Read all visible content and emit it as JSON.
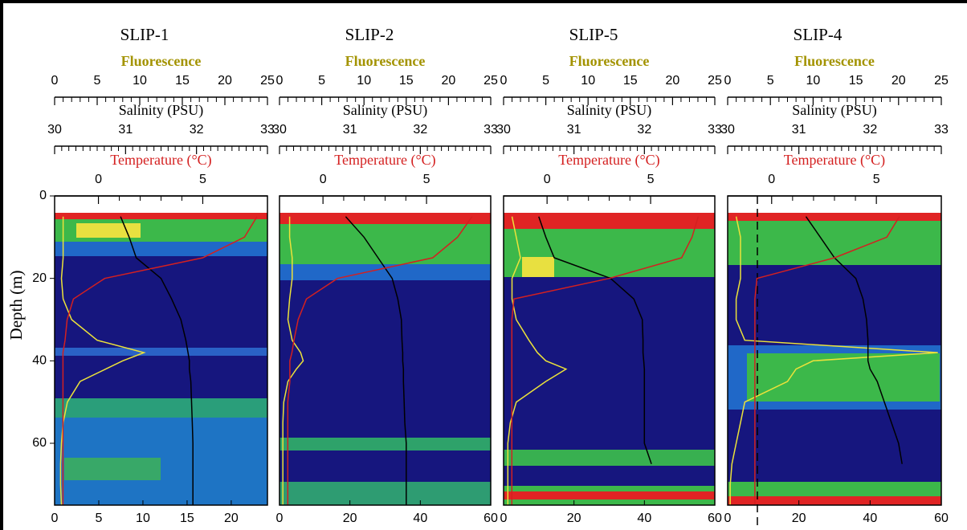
{
  "chart_data": [
    {
      "type": "line",
      "title": "SLIP-1",
      "ylabel": "Depth (m)",
      "ylim": [
        0,
        75
      ],
      "yticks": [
        0,
        20,
        40,
        60
      ],
      "xlim": [
        0,
        24.1
      ],
      "xticks": [
        0,
        5,
        10,
        15,
        20
      ],
      "depth": [
        5,
        10,
        15,
        20,
        25,
        30,
        35,
        38,
        40,
        42,
        45,
        50,
        55,
        60,
        65,
        70,
        75
      ],
      "axes": [
        {
          "label": "Fluorescence",
          "label_color": "#a39300",
          "line_color": "#ece23a",
          "xlim": [
            0,
            25
          ],
          "xticks": [
            0,
            5,
            10,
            15,
            20,
            25
          ],
          "values": [
            1,
            1,
            1,
            0.8,
            1,
            2,
            5,
            10.5,
            8,
            6,
            3,
            1.5,
            1,
            0.8,
            0.7,
            0.7,
            0.8
          ]
        },
        {
          "label": "Salinity (PSU)",
          "label_color": "#000000",
          "line_color": "#000000",
          "xlim": [
            30,
            33
          ],
          "xticks": [
            30,
            31,
            32,
            33
          ],
          "values": [
            30.93,
            31.05,
            31.15,
            31.5,
            31.65,
            31.78,
            31.85,
            31.88,
            31.9,
            31.9,
            31.92,
            31.93,
            31.94,
            31.95,
            31.95,
            31.95,
            31.95
          ]
        },
        {
          "label": "Temperature (°C)",
          "label_color": "#d42020",
          "line_color": "#d42020",
          "xlim": [
            -2.1,
            8.1
          ],
          "xticks": [
            0,
            5
          ],
          "values": [
            7.6,
            7.0,
            5.0,
            0.3,
            -1.2,
            -1.5,
            -1.6,
            -1.7,
            -1.7,
            -1.7,
            -1.7,
            -1.7,
            -1.7,
            -1.7,
            -1.7,
            -1.7,
            -1.7
          ]
        }
      ]
    },
    {
      "type": "line",
      "title": "SLIP-2",
      "ylim": [
        0,
        75
      ],
      "xlim": [
        0,
        60
      ],
      "xticks": [
        0,
        20,
        40,
        60
      ],
      "depth": [
        5,
        10,
        15,
        20,
        25,
        30,
        35,
        38,
        40,
        42,
        45,
        50,
        55,
        60,
        65,
        70,
        75
      ],
      "axes": [
        {
          "label": "Fluorescence",
          "label_color": "#a39300",
          "line_color": "#ece23a",
          "xlim": [
            0,
            25
          ],
          "xticks": [
            0,
            5,
            10,
            15,
            20,
            25
          ],
          "values": [
            1.2,
            1.2,
            1.5,
            1.5,
            1.2,
            1,
            1.5,
            2.5,
            2.8,
            2,
            1,
            0.5,
            0.4,
            0.4,
            0.4,
            0.4,
            0.4
          ]
        },
        {
          "label": "Salinity (PSU)",
          "label_color": "#000000",
          "line_color": "#000000",
          "xlim": [
            30,
            33
          ],
          "xticks": [
            30,
            31,
            32,
            33
          ],
          "values": [
            30.94,
            31.2,
            31.4,
            31.6,
            31.68,
            31.73,
            31.74,
            31.75,
            31.75,
            31.76,
            31.76,
            31.77,
            31.78,
            31.8,
            31.8,
            31.8,
            31.8
          ]
        },
        {
          "label": "Temperature (°C)",
          "label_color": "#d42020",
          "line_color": "#d42020",
          "xlim": [
            -2.1,
            8.1
          ],
          "xticks": [
            0,
            5
          ],
          "values": [
            7.2,
            6.5,
            5.3,
            0.7,
            -0.8,
            -1.2,
            -1.4,
            -1.5,
            -1.6,
            -1.6,
            -1.6,
            -1.7,
            -1.7,
            -1.7,
            -1.7,
            -1.7,
            -1.7
          ]
        }
      ]
    },
    {
      "type": "line",
      "title": "SLIP-5",
      "ylim": [
        0,
        75
      ],
      "xlim": [
        0,
        60
      ],
      "xticks": [
        0,
        20,
        40,
        60
      ],
      "depth": [
        5,
        10,
        15,
        20,
        25,
        30,
        35,
        38,
        40,
        42,
        45,
        50,
        55,
        60,
        65,
        70,
        75
      ],
      "axes": [
        {
          "label": "Fluorescence",
          "label_color": "#a39300",
          "line_color": "#ece23a",
          "xlim": [
            0,
            25
          ],
          "xticks": [
            0,
            5,
            10,
            15,
            20,
            25
          ],
          "values": [
            1,
            1.5,
            2,
            1,
            1,
            1.5,
            3,
            4,
            5,
            7.4,
            5,
            1.5,
            0.8,
            0.5,
            0.5,
            0.5,
            0.5
          ]
        },
        {
          "label": "Salinity (PSU)",
          "label_color": "#000000",
          "line_color": "#000000",
          "xlim": [
            30,
            33
          ],
          "xticks": [
            30,
            31,
            32,
            33
          ],
          "values": [
            30.5,
            30.6,
            30.72,
            31.52,
            31.85,
            31.97,
            31.98,
            31.98,
            31.99,
            32.0,
            32.0,
            32.0,
            32.0,
            32.0,
            32.1,
            null,
            null
          ]
        },
        {
          "label": "Temperature (°C)",
          "label_color": "#d42020",
          "line_color": "#d42020",
          "xlim": [
            -2.1,
            8.1
          ],
          "xticks": [
            0,
            5
          ],
          "values": [
            7.3,
            7.0,
            6.5,
            3.0,
            -1.6,
            -1.7,
            -1.7,
            -1.7,
            -1.7,
            -1.7,
            -1.7,
            -1.7,
            -1.7,
            -1.7,
            -1.7,
            -1.7,
            -1.7
          ]
        }
      ]
    },
    {
      "type": "line",
      "title": "SLIP-4",
      "ylim": [
        0,
        75
      ],
      "xlim": [
        0,
        60
      ],
      "xticks": [
        0,
        20,
        40,
        60
      ],
      "depth": [
        5,
        10,
        15,
        20,
        25,
        30,
        35,
        38,
        40,
        42,
        45,
        50,
        55,
        60,
        65,
        70,
        75
      ],
      "axes": [
        {
          "label": "Fluorescence",
          "label_color": "#a39300",
          "line_color": "#ece23a",
          "xlim": [
            0,
            25
          ],
          "xticks": [
            0,
            5,
            10,
            15,
            20,
            25
          ],
          "values": [
            1,
            1.5,
            1.5,
            1.5,
            1,
            1,
            2,
            24.6,
            10,
            8,
            7,
            2,
            1.5,
            1,
            0.5,
            0.3,
            0.3
          ]
        },
        {
          "label": "Salinity (PSU)",
          "label_color": "#000000",
          "line_color": "#000000",
          "xlim": [
            30,
            33
          ],
          "xticks": [
            30,
            31,
            32,
            33
          ],
          "values": [
            31.1,
            31.3,
            31.5,
            31.8,
            31.9,
            31.95,
            31.97,
            31.97,
            31.97,
            32.0,
            32.1,
            32.2,
            32.3,
            32.4,
            32.45,
            null,
            null
          ]
        },
        {
          "label": "Temperature (°C)",
          "label_color": "#d42020",
          "line_color": "#d42020",
          "xlim": [
            -2.1,
            8.1
          ],
          "xticks": [
            0,
            5
          ],
          "values": [
            6.1,
            5.5,
            3.0,
            -0.7,
            -0.8,
            -0.8,
            -0.8,
            -0.8,
            -0.8,
            -0.8,
            -0.8,
            -0.8,
            -0.8,
            -0.8,
            -0.8,
            -0.8,
            -0.8
          ]
        }
      ]
    }
  ]
}
